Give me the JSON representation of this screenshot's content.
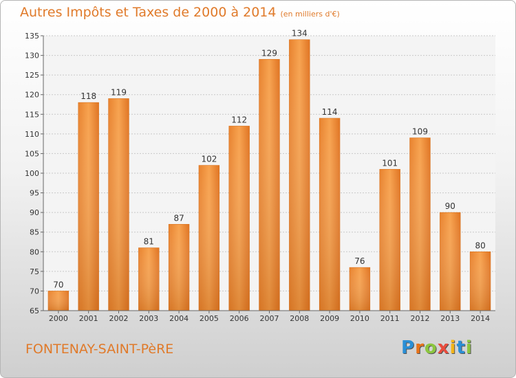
{
  "chart_data": {
    "type": "bar",
    "title": "Autres Impôts et Taxes de 2000 à 2014",
    "subtitle": "(en milliers d'€)",
    "categories": [
      "2000",
      "2001",
      "2002",
      "2003",
      "2004",
      "2005",
      "2006",
      "2007",
      "2008",
      "2009",
      "2010",
      "2011",
      "2012",
      "2013",
      "2014"
    ],
    "values": [
      70,
      118,
      119,
      81,
      87,
      102,
      112,
      129,
      134,
      114,
      76,
      101,
      109,
      90,
      80
    ],
    "ylim": [
      65,
      135
    ],
    "yticks": [
      65,
      70,
      75,
      80,
      85,
      90,
      95,
      100,
      105,
      110,
      115,
      120,
      125,
      130,
      135
    ],
    "grid": true,
    "bar_color": "#f0913a"
  },
  "location": "FONTENAY-SAINT-PèRE",
  "logo": {
    "text": "Proxiti",
    "letter_colors": [
      "#2a8fd6",
      "#e8731a",
      "#8cc63f",
      "#e84c3d",
      "#f3b519",
      "#2a8fd6",
      "#8cc63f"
    ]
  }
}
